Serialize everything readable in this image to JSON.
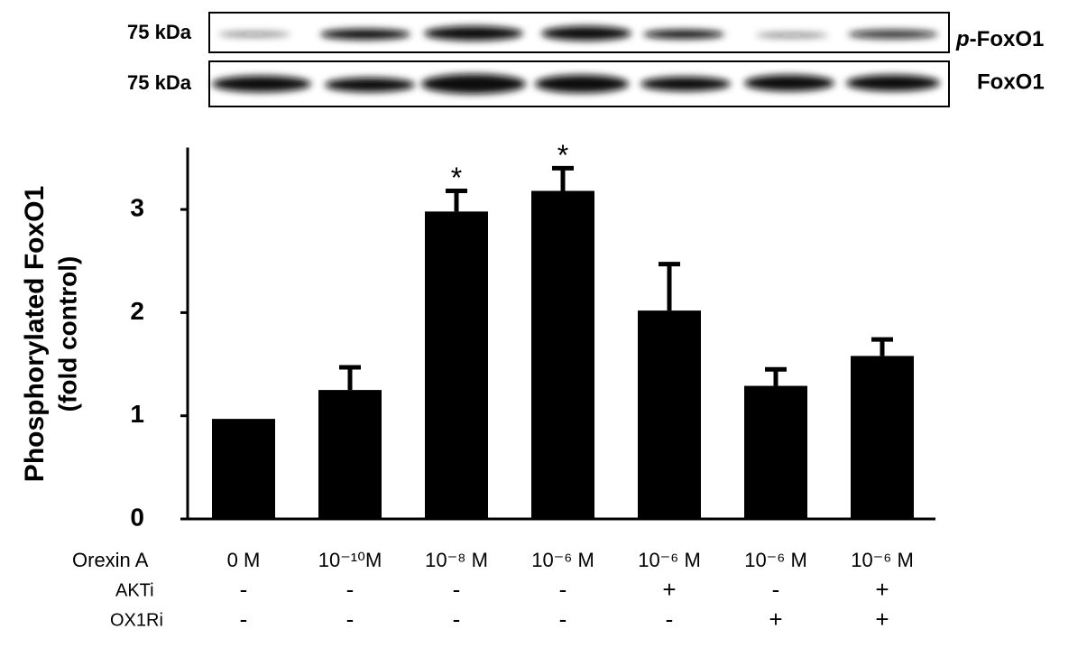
{
  "chart_data": {
    "type": "bar",
    "y_label_lines": [
      "Phosphorylated FoxO1",
      "(fold control)"
    ],
    "x_label": "Orexin A",
    "categories": [
      "0 M",
      "10⁻¹⁰M",
      "10⁻⁸ M",
      "10⁻⁶ M",
      "10⁻⁶ M",
      "10⁻⁶ M",
      "10⁻⁶ M"
    ],
    "values": [
      0.97,
      1.25,
      2.98,
      3.18,
      2.02,
      1.29,
      1.58
    ],
    "errors": [
      null,
      0.22,
      0.2,
      0.22,
      0.45,
      0.16,
      0.16
    ],
    "markers": [
      null,
      null,
      "*",
      "*",
      null,
      null,
      null
    ],
    "conditions": [
      {
        "name": "AKTi",
        "values": [
          "-",
          "-",
          "-",
          "-",
          "+",
          "-",
          "+"
        ]
      },
      {
        "name": "OX1Ri",
        "values": [
          "-",
          "-",
          "-",
          "-",
          "-",
          "+",
          "+"
        ]
      }
    ],
    "color": "#000000",
    "ylim": [
      0,
      3.6
    ],
    "yticks": [
      0,
      1,
      2,
      3
    ],
    "blot": [
      {
        "size": "75 kDa",
        "label_prefix": "p",
        "label": "-FoxO1"
      },
      {
        "size": "75 kDa",
        "label": "FoxO1"
      }
    ]
  }
}
